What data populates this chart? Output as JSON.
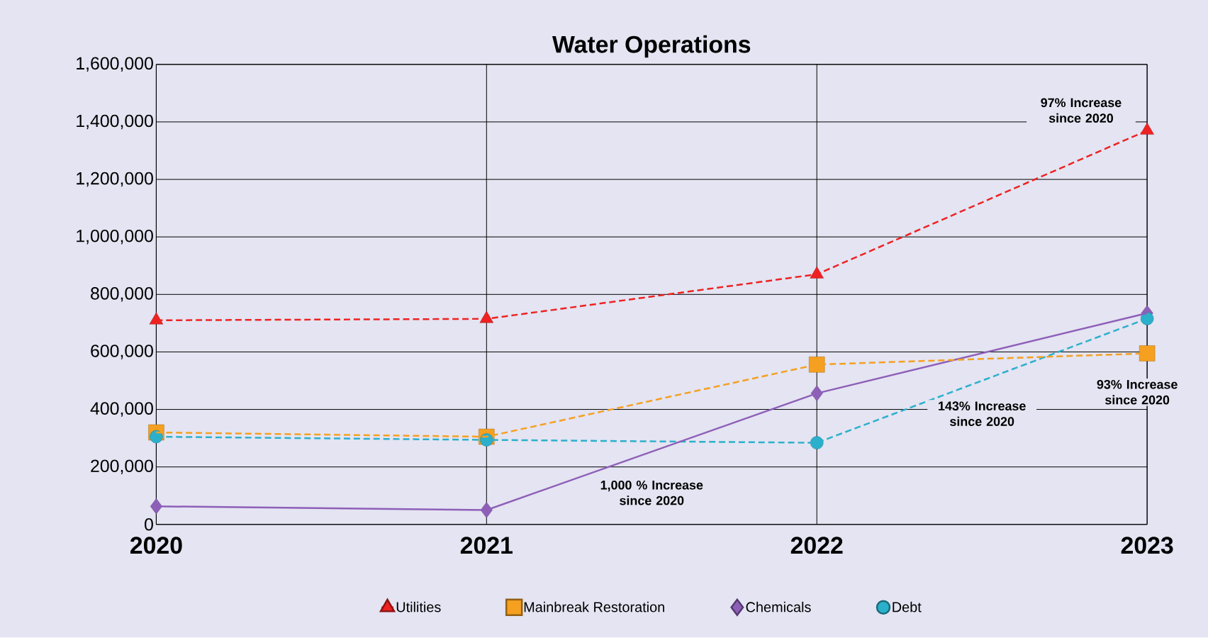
{
  "chart_data": {
    "type": "line",
    "title": "Water Operations",
    "categories": [
      "2020",
      "2021",
      "2022",
      "2023"
    ],
    "series": [
      {
        "name": "Utilities",
        "color": "#ee2222",
        "values": [
          710000,
          715000,
          870000,
          1370000
        ],
        "marker": "triangle",
        "line_style": "dashed"
      },
      {
        "name": "Mainbreak Restoration",
        "color": "#f5a020",
        "values": [
          320000,
          305000,
          556000,
          595000
        ],
        "marker": "square",
        "line_style": "dashed"
      },
      {
        "name": "Chemicals",
        "color": "#8e5fb8",
        "values": [
          63000,
          50000,
          456000,
          735000
        ],
        "marker": "diamond",
        "line_style": "solid"
      },
      {
        "name": "Debt",
        "color": "#2bb0cc",
        "values": [
          305000,
          294000,
          284000,
          716000
        ],
        "marker": "circle",
        "line_style": "dashed"
      }
    ],
    "ylim": [
      0,
      1600000
    ],
    "yticks": [
      0,
      {
        "value": 200000,
        "label": "200,000"
      },
      {
        "value": 400000,
        "label": "400,000"
      },
      {
        "value": 600000,
        "label": "600,000"
      },
      {
        "value": 800000,
        "label": "800,000"
      },
      {
        "value": 1000000,
        "label": "1,000,000"
      },
      {
        "value": 1200000,
        "label": "1,200,000"
      },
      {
        "value": 1400000,
        "label": "1,400,000"
      },
      {
        "value": 1600000,
        "label": "1,600,000"
      }
    ],
    "annotations": [
      "97% Increase since 2020",
      "1,000 % Increase since 2020",
      "143% Increase since 2020",
      "93% Increase since 2020"
    ],
    "grid": true,
    "legend": "bottom"
  }
}
